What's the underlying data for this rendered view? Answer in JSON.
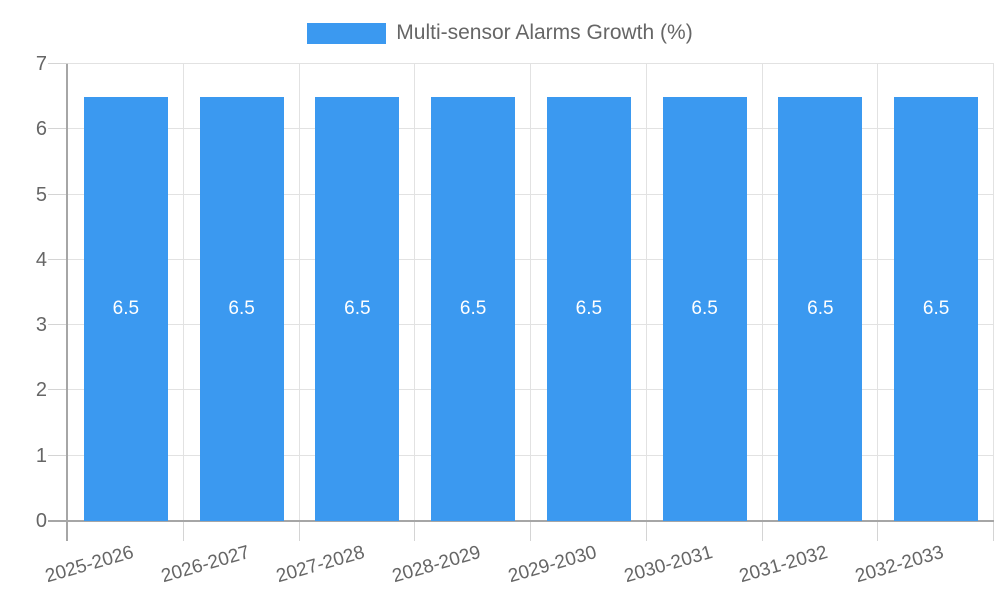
{
  "chart_data": {
    "type": "bar",
    "title": "",
    "legend": {
      "label": "Multi-sensor Alarms Growth (%)",
      "position": "top"
    },
    "categories": [
      "2025-2026",
      "2026-2027",
      "2027-2028",
      "2028-2029",
      "2029-2030",
      "2030-2031",
      "2031-2032",
      "2032-2033"
    ],
    "values": [
      6.5,
      6.5,
      6.5,
      6.5,
      6.5,
      6.5,
      6.5,
      6.5
    ],
    "bar_labels": [
      "6.5",
      "6.5",
      "6.5",
      "6.5",
      "6.5",
      "6.5",
      "6.5",
      "6.5"
    ],
    "xlabel": "",
    "ylabel": "",
    "ylim": [
      0,
      7
    ],
    "yticks": [
      0,
      1,
      2,
      3,
      4,
      5,
      6,
      7
    ],
    "grid": true,
    "colors": {
      "bar": "#3B99F0",
      "grid": "#E2E2E2",
      "tick": "#D4D4D4",
      "axis": "#A6A6A6",
      "text": "#666666",
      "bar_label": "#FFFFFF",
      "background": "#FFFFFF"
    }
  }
}
